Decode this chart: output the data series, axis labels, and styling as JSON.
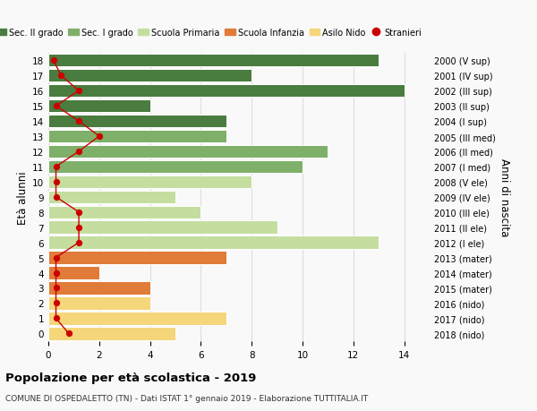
{
  "ages": [
    18,
    17,
    16,
    15,
    14,
    13,
    12,
    11,
    10,
    9,
    8,
    7,
    6,
    5,
    4,
    3,
    2,
    1,
    0
  ],
  "right_labels": [
    "2000 (V sup)",
    "2001 (IV sup)",
    "2002 (III sup)",
    "2003 (II sup)",
    "2004 (I sup)",
    "2005 (III med)",
    "2006 (II med)",
    "2007 (I med)",
    "2008 (V ele)",
    "2009 (IV ele)",
    "2010 (III ele)",
    "2011 (II ele)",
    "2012 (I ele)",
    "2013 (mater)",
    "2014 (mater)",
    "2015 (mater)",
    "2016 (nido)",
    "2017 (nido)",
    "2018 (nido)"
  ],
  "bar_values": [
    13,
    8,
    14,
    4,
    7,
    7,
    11,
    10,
    8,
    5,
    6,
    9,
    13,
    7,
    2,
    4,
    4,
    7,
    5
  ],
  "bar_colors": [
    "#4a7c3f",
    "#4a7c3f",
    "#4a7c3f",
    "#4a7c3f",
    "#4a7c3f",
    "#7fb069",
    "#7fb069",
    "#7fb069",
    "#c5dea0",
    "#c5dea0",
    "#c5dea0",
    "#c5dea0",
    "#c5dea0",
    "#e07b39",
    "#e07b39",
    "#e07b39",
    "#f5d67a",
    "#f5d67a",
    "#f5d67a"
  ],
  "stranieri_values": [
    0.2,
    0.5,
    1.2,
    0.3,
    1.2,
    2.0,
    1.2,
    0.3,
    0.3,
    0.3,
    1.2,
    1.2,
    1.2,
    0.3,
    0.3,
    0.3,
    0.3,
    0.3,
    0.8
  ],
  "xlim": [
    0,
    15
  ],
  "xticks": [
    0,
    2,
    4,
    6,
    8,
    10,
    12,
    14
  ],
  "ylabel_left": "Età alunni",
  "ylabel_right": "Anni di nascita",
  "title_main": "Popolazione per età scolastica - 2019",
  "subtitle": "COMUNE DI OSPEDALETTO (TN) - Dati ISTAT 1° gennaio 2019 - Elaborazione TUTTITALIA.IT",
  "legend_items": [
    {
      "label": "Sec. II grado",
      "color": "#4a7c3f"
    },
    {
      "label": "Sec. I grado",
      "color": "#7fb069"
    },
    {
      "label": "Scuola Primaria",
      "color": "#c5dea0"
    },
    {
      "label": "Scuola Infanzia",
      "color": "#e07b39"
    },
    {
      "label": "Asilo Nido",
      "color": "#f5d67a"
    },
    {
      "label": "Stranieri",
      "color": "#cc0000"
    }
  ],
  "bg_color": "#f9f9f9",
  "grid_color": "#dddddd",
  "stranieri_color": "#cc0000"
}
